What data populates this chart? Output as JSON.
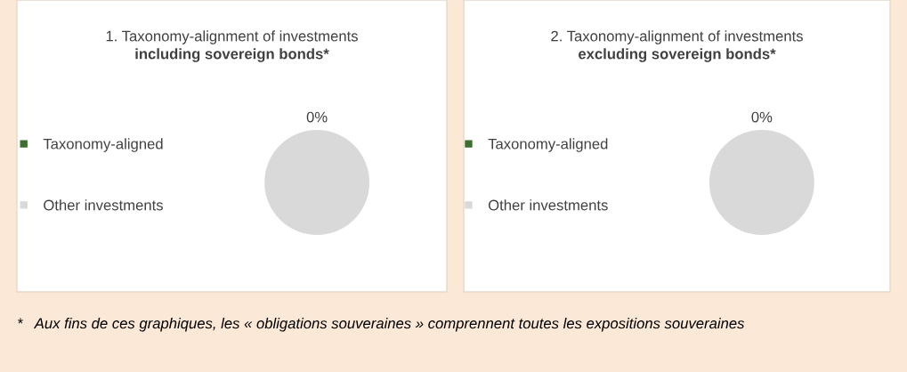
{
  "chart_data": [
    {
      "type": "pie",
      "title": "1. Taxonomy-alignment of investments",
      "subtitle": "including sovereign bonds*",
      "categories": [
        "Taxonomy-aligned",
        "Other investments"
      ],
      "values": [
        0,
        100
      ],
      "colors": [
        "#3b6e2f",
        "#d9d9d9"
      ],
      "value_labels": [
        "0%",
        null
      ],
      "legend": "left"
    },
    {
      "type": "pie",
      "title": "2. Taxonomy-alignment of investments",
      "subtitle": "excluding sovereign bonds*",
      "categories": [
        "Taxonomy-aligned",
        "Other investments"
      ],
      "values": [
        0,
        100
      ],
      "colors": [
        "#3b6e2f",
        "#d9d9d9"
      ],
      "value_labels": [
        "0%",
        null
      ],
      "legend": "left",
      "annotations": [
        "*   Aux fins de ces graphiques, les « obligations souveraines » comprennent toutes les expositions souveraines"
      ]
    }
  ]
}
